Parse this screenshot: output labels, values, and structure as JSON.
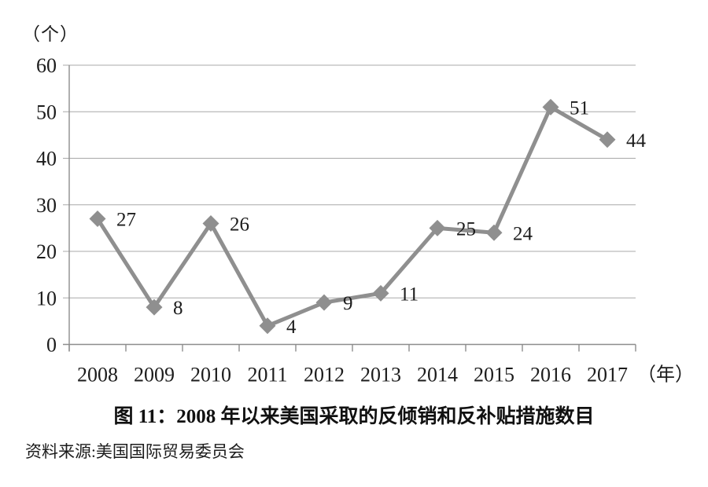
{
  "figure": {
    "caption": "图 11：2008 年以来美国采取的反倾销和反补贴措施数目",
    "source": "资料来源:美国国际贸易委员会"
  },
  "chart_data": {
    "type": "line",
    "title": "图 11：2008 年以来美国采取的反倾销和反补贴措施数目",
    "y_unit": "（个）",
    "x_unit": "（年）",
    "categories": [
      "2008",
      "2009",
      "2010",
      "2011",
      "2012",
      "2013",
      "2014",
      "2015",
      "2016",
      "2017"
    ],
    "values": [
      27,
      8,
      26,
      4,
      9,
      11,
      25,
      24,
      51,
      44
    ],
    "data_labels": [
      27,
      8,
      26,
      4,
      9,
      11,
      25,
      24,
      51,
      44
    ],
    "ylim": [
      0,
      60
    ],
    "y_ticks": [
      0,
      10,
      20,
      30,
      40,
      50,
      60
    ],
    "grid": true,
    "legend": "none",
    "line_color": "#8f8f8f",
    "grid_color": "#a8a8a8",
    "marker": "diamond"
  }
}
